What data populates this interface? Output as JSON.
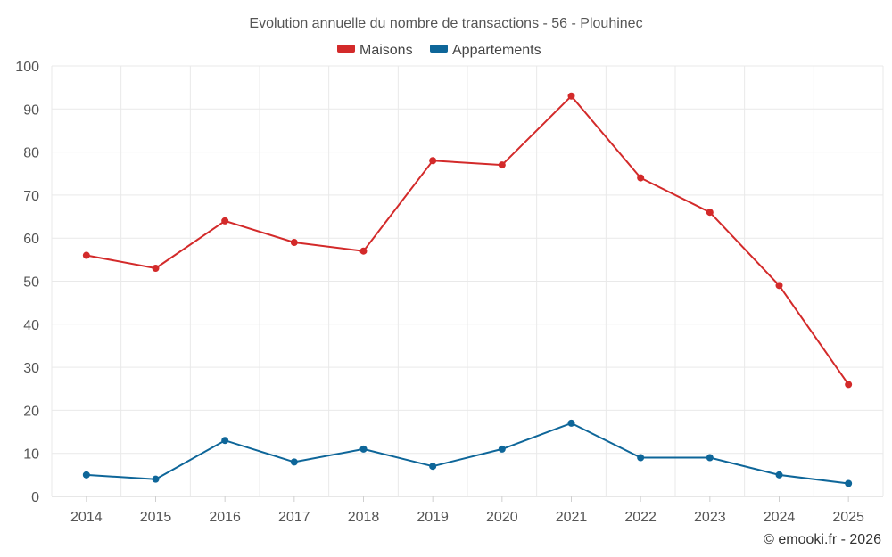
{
  "chart_data": {
    "type": "line",
    "title": "Evolution annuelle du nombre de transactions - 56 - Plouhinec",
    "categories": [
      "2014",
      "2015",
      "2016",
      "2017",
      "2018",
      "2019",
      "2020",
      "2021",
      "2022",
      "2023",
      "2024",
      "2025"
    ],
    "series": [
      {
        "name": "Maisons",
        "color": "#d32a2a",
        "values": [
          56,
          53,
          64,
          59,
          57,
          78,
          77,
          93,
          74,
          66,
          49,
          26
        ]
      },
      {
        "name": "Appartements",
        "color": "#0e6699",
        "values": [
          5,
          4,
          13,
          8,
          11,
          7,
          11,
          17,
          9,
          9,
          5,
          3
        ]
      }
    ],
    "ylim": [
      0,
      100
    ],
    "yticks": [
      0,
      10,
      20,
      30,
      40,
      50,
      60,
      70,
      80,
      90,
      100
    ],
    "grid": true,
    "legend": "top-center",
    "credit": "© emooki.fr - 2026"
  }
}
